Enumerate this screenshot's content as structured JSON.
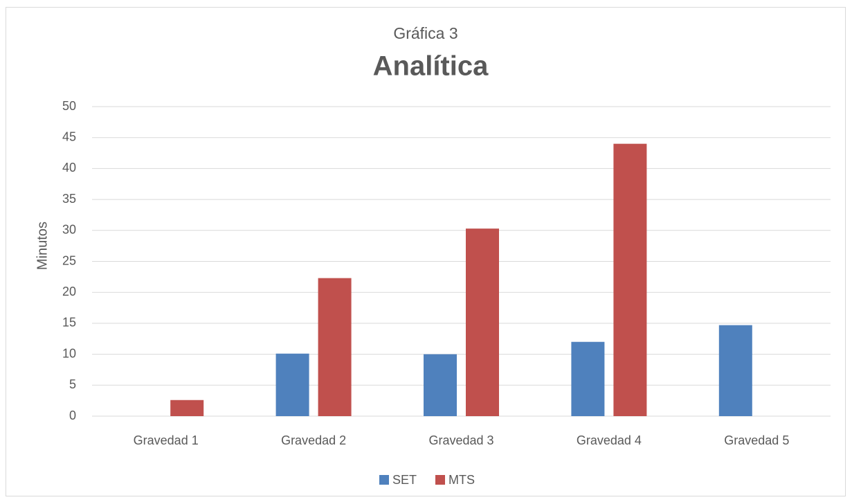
{
  "chart_data": {
    "type": "bar",
    "title": "Gráfica 3",
    "subtitle": "Analítica",
    "ylabel": "Minutos",
    "categories": [
      "Gravedad 1",
      "Gravedad 2",
      "Gravedad 3",
      "Gravedad 4",
      "Gravedad 5"
    ],
    "series": [
      {
        "name": "SET",
        "color": "#4f81bd",
        "values": [
          null,
          10.1,
          10.0,
          12.0,
          14.7
        ]
      },
      {
        "name": "MTS",
        "color": "#c0504d",
        "values": [
          2.6,
          22.3,
          30.3,
          44.0,
          null
        ]
      }
    ],
    "ylim": [
      0,
      50
    ],
    "yticks": [
      0,
      5,
      10,
      15,
      20,
      25,
      30,
      35,
      40,
      45,
      50
    ],
    "grid": true,
    "legend": "bottom"
  }
}
